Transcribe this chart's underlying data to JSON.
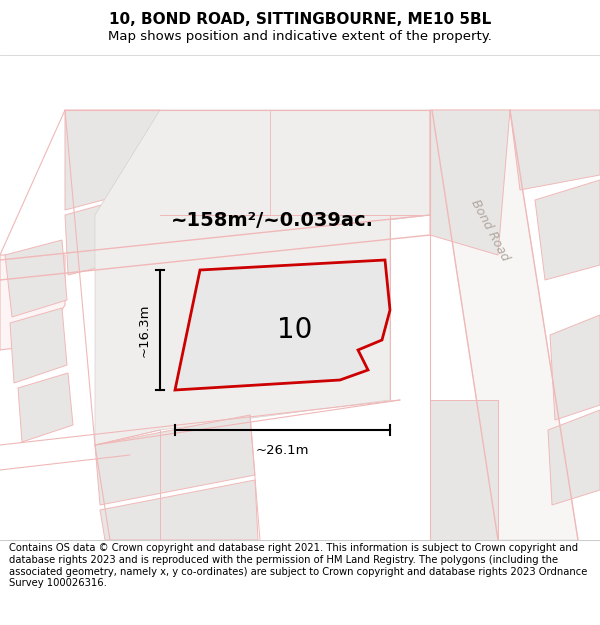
{
  "title_line1": "10, BOND ROAD, SITTINGBOURNE, ME10 5BL",
  "title_line2": "Map shows position and indicative extent of the property.",
  "footer_text": "Contains OS data © Crown copyright and database right 2021. This information is subject to Crown copyright and database rights 2023 and is reproduced with the permission of HM Land Registry. The polygons (including the associated geometry, namely x, y co-ordinates) are subject to Crown copyright and database rights 2023 Ordnance Survey 100026316.",
  "map_bg": "#ffffff",
  "property_color": "#cc0000",
  "property_fill": "#e8e8e8",
  "road_color": "#f0b8b8",
  "building_fill": "#e8e6e4",
  "building_stroke": "#f0b8b8",
  "block_fill": "#eeebe8",
  "block_stroke": "#d8c8c8",
  "area_text": "~158m²/~0.039ac.",
  "dim_width": "~26.1m",
  "dim_height": "~16.3m",
  "label_number": "10",
  "bond_road_label": "Bond Road",
  "title_fontsize": 11,
  "subtitle_fontsize": 9.5,
  "footer_fontsize": 7.2
}
